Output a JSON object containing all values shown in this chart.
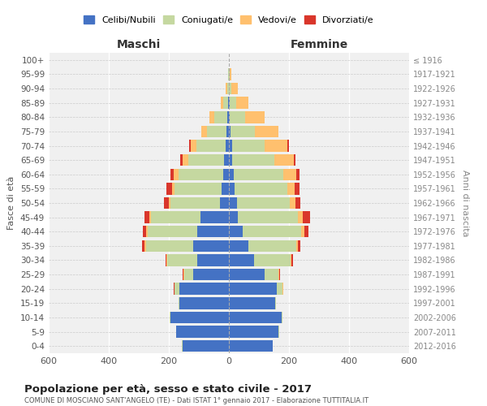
{
  "age_groups": [
    "0-4",
    "5-9",
    "10-14",
    "15-19",
    "20-24",
    "25-29",
    "30-34",
    "35-39",
    "40-44",
    "45-49",
    "50-54",
    "55-59",
    "60-64",
    "65-69",
    "70-74",
    "75-79",
    "80-84",
    "85-89",
    "90-94",
    "95-99",
    "100+"
  ],
  "birth_years": [
    "2012-2016",
    "2007-2011",
    "2002-2006",
    "1997-2001",
    "1992-1996",
    "1987-1991",
    "1982-1986",
    "1977-1981",
    "1972-1976",
    "1967-1971",
    "1962-1966",
    "1957-1961",
    "1952-1956",
    "1947-1951",
    "1942-1946",
    "1937-1941",
    "1932-1936",
    "1927-1931",
    "1922-1926",
    "1917-1921",
    "≤ 1916"
  ],
  "maschi": {
    "celibi": [
      155,
      175,
      195,
      165,
      165,
      120,
      105,
      120,
      105,
      95,
      30,
      25,
      18,
      15,
      12,
      8,
      5,
      3,
      1,
      0,
      0
    ],
    "coniugati": [
      2,
      2,
      2,
      2,
      15,
      30,
      100,
      155,
      165,
      165,
      165,
      155,
      150,
      120,
      95,
      65,
      45,
      15,
      5,
      2,
      0
    ],
    "vedovi": [
      0,
      0,
      0,
      0,
      2,
      2,
      2,
      5,
      5,
      5,
      5,
      10,
      15,
      20,
      20,
      20,
      15,
      10,
      5,
      1,
      0
    ],
    "divorziati": [
      0,
      0,
      0,
      0,
      2,
      3,
      5,
      10,
      12,
      15,
      15,
      18,
      12,
      8,
      5,
      0,
      0,
      0,
      0,
      0,
      0
    ]
  },
  "femmine": {
    "nubili": [
      145,
      165,
      175,
      155,
      160,
      120,
      85,
      65,
      45,
      30,
      28,
      20,
      15,
      12,
      10,
      6,
      4,
      2,
      1,
      0,
      0
    ],
    "coniugate": [
      2,
      2,
      3,
      3,
      18,
      45,
      120,
      160,
      195,
      200,
      175,
      175,
      165,
      140,
      110,
      80,
      50,
      22,
      8,
      2,
      0
    ],
    "vedove": [
      0,
      0,
      0,
      0,
      2,
      2,
      3,
      5,
      10,
      15,
      18,
      25,
      45,
      65,
      75,
      80,
      65,
      40,
      20,
      5,
      0
    ],
    "divorziate": [
      0,
      0,
      0,
      0,
      2,
      3,
      5,
      8,
      15,
      25,
      18,
      15,
      10,
      5,
      5,
      0,
      0,
      0,
      0,
      0,
      0
    ]
  },
  "colors": {
    "celibi": "#4472c4",
    "coniugati": "#c5d8a0",
    "vedovi": "#ffc06e",
    "divorziati": "#d9362b"
  },
  "title": "Popolazione per età, sesso e stato civile - 2017",
  "subtitle": "COMUNE DI MOSCIANO SANT'ANGELO (TE) - Dati ISTAT 1° gennaio 2017 - Elaborazione TUTTITALIA.IT",
  "xlabel_left": "Maschi",
  "xlabel_right": "Femmine",
  "ylabel_left": "Fasce di età",
  "ylabel_right": "Anni di nascita",
  "xlim": 600,
  "legend_labels": [
    "Celibi/Nubili",
    "Coniugati/e",
    "Vedovi/e",
    "Divorziati/e"
  ],
  "background_color": "#f0f0f0"
}
